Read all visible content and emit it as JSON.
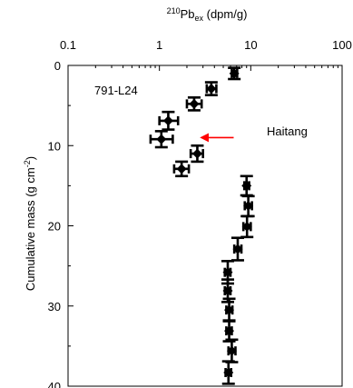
{
  "chart_data": {
    "type": "scatter",
    "sample_label": "791-L24",
    "x_axis": {
      "label_base": "Pb",
      "label_superscript": "210",
      "label_subscript": "ex",
      "label_units": " (dpm/g)",
      "scale": "log",
      "range": [
        0.1,
        100
      ],
      "ticks": [
        0.1,
        1,
        10,
        100
      ],
      "tick_labels": [
        "0.1",
        "1",
        "10",
        "100"
      ],
      "position": "top"
    },
    "y_axis": {
      "label_main": "Cumulative mass (g cm",
      "label_superscript": "-2",
      "label_close": ")",
      "range": [
        0,
        40
      ],
      "inverted": true,
      "ticks": [
        0,
        10,
        20,
        30,
        40
      ],
      "tick_labels": [
        "0",
        "10",
        "20",
        "30",
        "40"
      ]
    },
    "annotation": {
      "text": "Haitang",
      "arrow_from": [
        6.5,
        9
      ],
      "arrow_to": [
        2.9,
        9
      ]
    },
    "points": [
      {
        "x": 6.6,
        "y": 1.0,
        "xerr": [
          6.2,
          7.1
        ],
        "yerr": [
          0.3,
          1.7
        ]
      },
      {
        "x": 3.7,
        "y": 2.9,
        "xerr": [
          3.3,
          4.2
        ],
        "yerr": [
          2.1,
          3.7
        ]
      },
      {
        "x": 2.4,
        "y": 4.8,
        "xerr": [
          2.0,
          2.9
        ],
        "yerr": [
          4.0,
          5.6
        ]
      },
      {
        "x": 1.25,
        "y": 6.9,
        "xerr": [
          1.0,
          1.6
        ],
        "yerr": [
          5.8,
          8.0
        ]
      },
      {
        "x": 1.05,
        "y": 9.2,
        "xerr": [
          0.8,
          1.4
        ],
        "yerr": [
          8.2,
          10.2
        ]
      },
      {
        "x": 2.6,
        "y": 11.0,
        "xerr": [
          2.2,
          3.0
        ],
        "yerr": [
          10.0,
          12.0
        ]
      },
      {
        "x": 1.75,
        "y": 12.9,
        "xerr": [
          1.45,
          2.1
        ],
        "yerr": [
          12.0,
          13.8
        ]
      },
      {
        "x": 9.0,
        "y": 15.0,
        "xerr": [
          8.5,
          9.6
        ],
        "yerr": [
          13.8,
          16.2
        ]
      },
      {
        "x": 9.4,
        "y": 17.5,
        "xerr": [
          8.6,
          10.3
        ],
        "yerr": [
          16.3,
          18.8
        ]
      },
      {
        "x": 9.1,
        "y": 20.1,
        "xerr": [
          8.3,
          10.0
        ],
        "yerr": [
          18.8,
          21.4
        ]
      },
      {
        "x": 7.2,
        "y": 22.9,
        "xerr": [
          6.6,
          7.9
        ],
        "yerr": [
          21.5,
          24.3
        ]
      },
      {
        "x": 5.6,
        "y": 25.8,
        "xerr": [
          5.2,
          6.0
        ],
        "yerr": [
          24.4,
          27.2
        ]
      },
      {
        "x": 5.6,
        "y": 28.1,
        "xerr": [
          5.2,
          6.0
        ],
        "yerr": [
          26.7,
          29.5
        ]
      },
      {
        "x": 5.8,
        "y": 30.5,
        "xerr": [
          5.4,
          6.3
        ],
        "yerr": [
          29.1,
          31.9
        ]
      },
      {
        "x": 5.8,
        "y": 33.1,
        "xerr": [
          5.4,
          6.2
        ],
        "yerr": [
          31.8,
          34.4
        ]
      },
      {
        "x": 6.2,
        "y": 35.6,
        "xerr": [
          5.7,
          6.8
        ],
        "yerr": [
          34.2,
          37.0
        ]
      },
      {
        "x": 5.7,
        "y": 38.3,
        "xerr": [
          5.3,
          6.1
        ],
        "yerr": [
          36.9,
          39.7
        ]
      }
    ]
  }
}
